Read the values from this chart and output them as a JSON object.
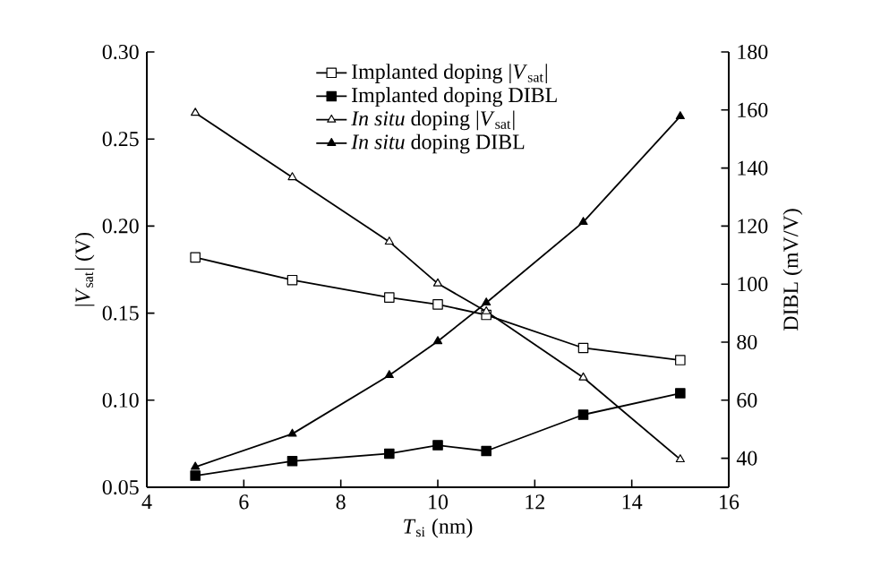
{
  "chart_data": {
    "type": "line",
    "xlabel": "*T*$_{si}$ (nm)",
    "ylabel": "|*V*$_{sat}$| (V)",
    "y2label": "DIBL (mV/V)",
    "x": [
      5,
      7,
      9,
      10,
      11,
      13,
      15
    ],
    "series": [
      {
        "name": "Implanted doping |*V*$_{sat}$|",
        "color": "#000000",
        "marker": "square",
        "values": [
          0.182,
          0.169,
          0.159,
          0.155,
          0.149,
          0.13,
          0.123
        ]
      },
      {
        "name": "Implanted doping DIBL",
        "color": "#000000",
        "marker": "square",
        "axis": "y2",
        "values": [
          34,
          39,
          41.6,
          44.5,
          42.5,
          55,
          62.4
        ]
      },
      {
        "name": "*In situ* doping |*V*$_{sat}$|",
        "color": "#000000",
        "marker": "triangle",
        "values": [
          0.265,
          0.228,
          0.191,
          0.167,
          0.151,
          0.113,
          0.066
        ]
      },
      {
        "name": "*In situ* doping DIBL",
        "color": "#000000",
        "marker": "triangle",
        "axis": "y2",
        "values": [
          37,
          48.4,
          68.6,
          80.3,
          93.6,
          121.4,
          157.8
        ]
      }
    ],
    "xlim": [
      4,
      16
    ],
    "xticks": [
      4,
      6,
      8,
      10,
      12,
      14,
      16
    ],
    "ylim": [
      0.05,
      0.3
    ],
    "yticks": [
      0.05,
      {
        "value": 0.1,
        "label": "0.10"
      },
      0.15,
      {
        "value": 0.2,
        "label": "0.20"
      },
      0.25,
      {
        "value": 0.3,
        "label": "0.30"
      }
    ],
    "y2lim": [
      30,
      180
    ],
    "y2ticks": [
      40,
      60,
      80,
      100,
      120,
      140,
      160,
      180
    ],
    "legend": "top"
  }
}
